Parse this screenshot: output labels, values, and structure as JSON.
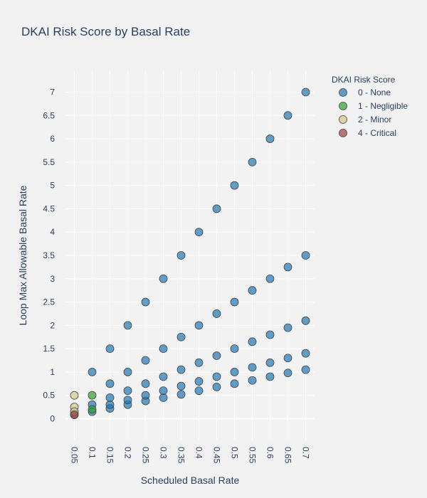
{
  "chart_data": {
    "type": "scatter",
    "title": "DKAI Risk Score by Basal Rate",
    "xlabel": "Scheduled Basal Rate",
    "ylabel": "Loop Max Allowable Basal Rate",
    "x_categories": [
      "0.05",
      "0.1",
      "0.15",
      "0.2",
      "0.25",
      "0.3",
      "0.35",
      "0.4",
      "0.45",
      "0.5",
      "0.55",
      "0.6",
      "0.65",
      "0.7"
    ],
    "ylim": [
      -0.45,
      7.45
    ],
    "y_ticks": [
      0,
      0.5,
      1,
      1.5,
      2,
      2.5,
      3,
      3.5,
      4,
      4.5,
      5,
      5.5,
      6,
      6.5,
      7
    ],
    "grid": true,
    "legend": {
      "title": "DKAI Risk Score",
      "placement": "top-right"
    },
    "series": [
      {
        "name": "0 - None",
        "color": "#1f77b4",
        "points": [
          [
            0.05,
            0.1
          ],
          [
            0.1,
            0.15
          ],
          [
            0.1,
            0.3
          ],
          [
            0.1,
            1.0
          ],
          [
            0.15,
            0.22
          ],
          [
            0.15,
            0.3
          ],
          [
            0.15,
            0.45
          ],
          [
            0.15,
            0.75
          ],
          [
            0.15,
            1.5
          ],
          [
            0.2,
            0.3
          ],
          [
            0.2,
            0.4
          ],
          [
            0.2,
            0.6
          ],
          [
            0.2,
            1.0
          ],
          [
            0.2,
            2.0
          ],
          [
            0.25,
            0.38
          ],
          [
            0.25,
            0.5
          ],
          [
            0.25,
            0.75
          ],
          [
            0.25,
            1.25
          ],
          [
            0.25,
            2.5
          ],
          [
            0.3,
            0.45
          ],
          [
            0.3,
            0.6
          ],
          [
            0.3,
            0.9
          ],
          [
            0.3,
            1.5
          ],
          [
            0.3,
            3.0
          ],
          [
            0.35,
            0.52
          ],
          [
            0.35,
            0.7
          ],
          [
            0.35,
            1.05
          ],
          [
            0.35,
            1.75
          ],
          [
            0.35,
            3.5
          ],
          [
            0.4,
            0.6
          ],
          [
            0.4,
            0.8
          ],
          [
            0.4,
            1.2
          ],
          [
            0.4,
            2.0
          ],
          [
            0.4,
            4.0
          ],
          [
            0.45,
            0.68
          ],
          [
            0.45,
            0.9
          ],
          [
            0.45,
            1.35
          ],
          [
            0.45,
            2.25
          ],
          [
            0.45,
            4.5
          ],
          [
            0.5,
            0.75
          ],
          [
            0.5,
            1.0
          ],
          [
            0.5,
            1.5
          ],
          [
            0.5,
            2.5
          ],
          [
            0.5,
            5.0
          ],
          [
            0.55,
            0.82
          ],
          [
            0.55,
            1.1
          ],
          [
            0.55,
            1.65
          ],
          [
            0.55,
            2.75
          ],
          [
            0.55,
            5.5
          ],
          [
            0.6,
            0.9
          ],
          [
            0.6,
            1.2
          ],
          [
            0.6,
            1.8
          ],
          [
            0.6,
            3.0
          ],
          [
            0.6,
            6.0
          ],
          [
            0.65,
            0.98
          ],
          [
            0.65,
            1.3
          ],
          [
            0.65,
            1.95
          ],
          [
            0.65,
            3.25
          ],
          [
            0.65,
            6.5
          ],
          [
            0.7,
            1.05
          ],
          [
            0.7,
            1.4
          ],
          [
            0.7,
            2.1
          ],
          [
            0.7,
            3.5
          ],
          [
            0.7,
            7.0
          ]
        ]
      },
      {
        "name": "1 - Negligible",
        "color": "#2ca02c",
        "points": [
          [
            0.1,
            0.2
          ],
          [
            0.1,
            0.5
          ]
        ]
      },
      {
        "name": "2 - Minor",
        "color": "#d4c58a",
        "points": [
          [
            0.05,
            0.25
          ],
          [
            0.05,
            0.5
          ],
          [
            0.05,
            0.15
          ]
        ]
      },
      {
        "name": "4 - Critical",
        "color": "#a0403c",
        "points": [
          [
            0.05,
            0.08
          ]
        ]
      }
    ]
  }
}
